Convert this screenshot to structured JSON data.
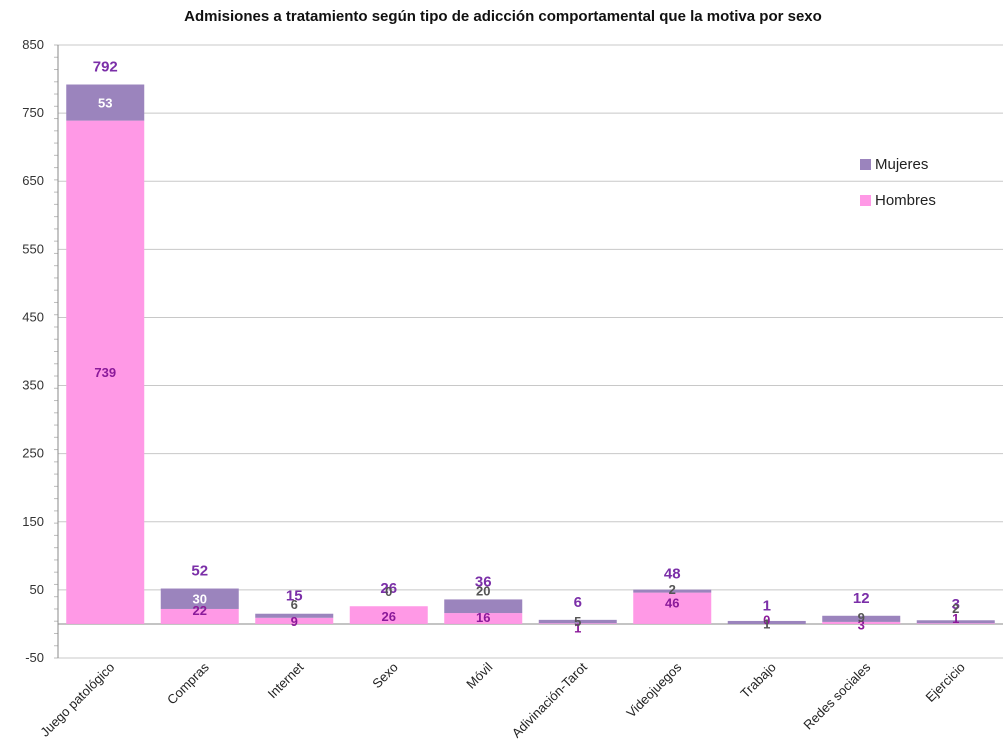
{
  "chart_data": {
    "type": "bar",
    "stacked": true,
    "title": "Admisiones a tratamiento según tipo de adicción comportamental que la motiva por sexo",
    "xlabel": "",
    "ylabel": "",
    "ylim": [
      -50,
      850
    ],
    "yticks": [
      -50,
      50,
      150,
      250,
      350,
      450,
      550,
      650,
      750,
      850
    ],
    "grid": true,
    "legend_position": "right",
    "categories": [
      "Juego patológico",
      "Compras",
      "Internet",
      "Sexo",
      "Móvil",
      "Adivinación-Tarot",
      "Videojuegos",
      "Trabajo",
      "Redes sociales",
      "Ejercicio"
    ],
    "series": [
      {
        "name": "Hombres",
        "color": "#ff99e6",
        "label_color": "#8b1a9a",
        "values": [
          739,
          22,
          9,
          26,
          16,
          1,
          46,
          0,
          3,
          1
        ]
      },
      {
        "name": "Mujeres",
        "color": "#9b84bd",
        "label_color": "#555555",
        "values": [
          53,
          30,
          6,
          0,
          20,
          5,
          2,
          1,
          9,
          2
        ]
      }
    ],
    "totals": [
      792,
      52,
      15,
      26,
      36,
      6,
      48,
      1,
      12,
      3
    ],
    "total_label_color": "#7b2fa8"
  }
}
